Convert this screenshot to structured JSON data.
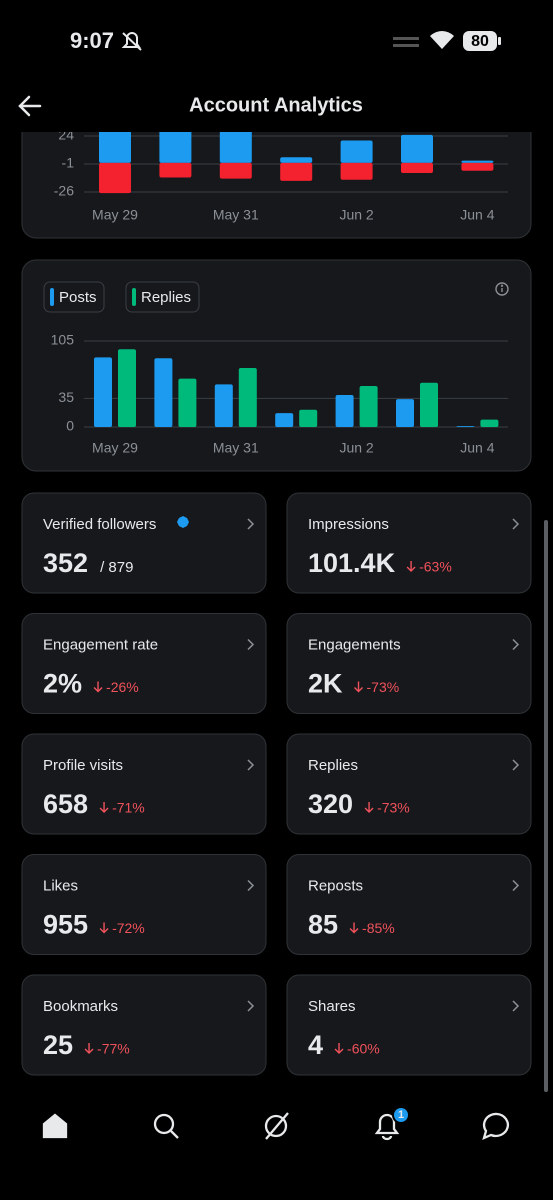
{
  "status_bar": {
    "time": "9:07",
    "battery": "80"
  },
  "header": {
    "title": "Account Analytics"
  },
  "chart_data": [
    {
      "type": "bar",
      "stacked": true,
      "categories": [
        "May 29",
        null,
        "May 31",
        null,
        "Jun 2",
        null,
        "Jun 4"
      ],
      "series": [
        {
          "color": "#1d9bf0",
          "values": [
            30,
            30,
            30,
            5,
            20,
            25,
            2
          ]
        },
        {
          "color": "#f4212e",
          "values": [
            -27,
            -13,
            -14,
            -16,
            -15,
            -9,
            -7
          ]
        }
      ],
      "ylim": [
        -30,
        30
      ],
      "yticks": [
        24,
        -1,
        -26
      ],
      "grid": true
    },
    {
      "type": "bar",
      "categories": [
        "May 29",
        null,
        "May 31",
        null,
        "Jun 2",
        null,
        "Jun 4"
      ],
      "series": [
        {
          "name": "Posts",
          "color": "#1d9bf0",
          "values": [
            85,
            84,
            52,
            17,
            39,
            34,
            1
          ]
        },
        {
          "name": "Replies",
          "color": "#00ba7c",
          "values": [
            95,
            59,
            72,
            21,
            50,
            54,
            9
          ]
        }
      ],
      "ylim": [
        0,
        105
      ],
      "yticks": [
        0,
        35,
        105
      ],
      "grid": true
    }
  ],
  "stats": [
    {
      "label": "Verified followers",
      "value": "352",
      "total": "/ 879"
    },
    {
      "label": "Impressions",
      "value": "101.4K",
      "change": "-63%"
    },
    {
      "label": "Engagement rate",
      "value": "2%",
      "change": "-26%"
    },
    {
      "label": "Engagements",
      "value": "2K",
      "change": "-73%"
    },
    {
      "label": "Profile visits",
      "value": "658",
      "change": "-71%"
    },
    {
      "label": "Replies",
      "value": "320",
      "change": "-73%"
    },
    {
      "label": "Likes",
      "value": "955",
      "change": "-72%"
    },
    {
      "label": "Reposts",
      "value": "85",
      "change": "-85%"
    },
    {
      "label": "Bookmarks",
      "value": "25",
      "change": "-77%"
    },
    {
      "label": "Shares",
      "value": "4",
      "change": "-60%"
    }
  ],
  "nav": {
    "badge": "1"
  }
}
